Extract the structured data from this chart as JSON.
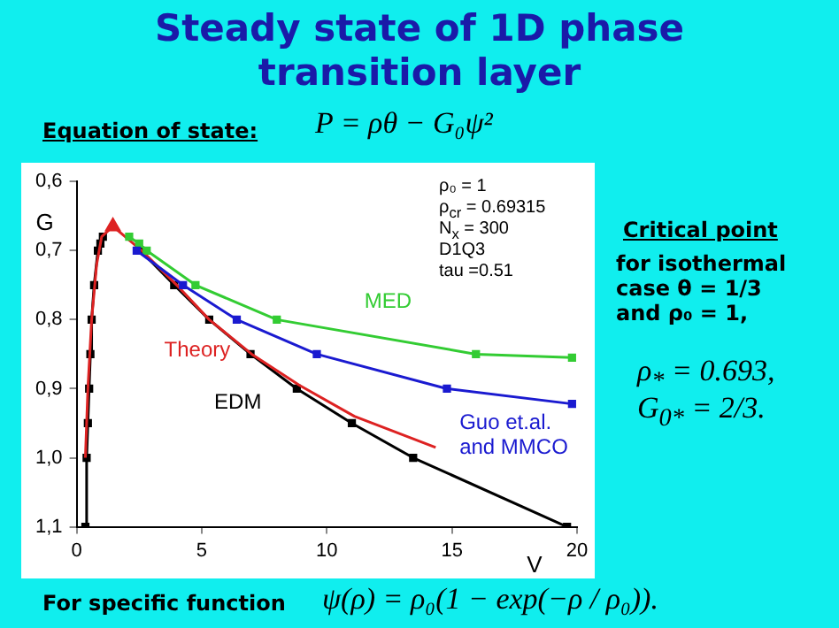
{
  "chart_data": {
    "type": "line",
    "title": "Steady state of 1D phase transition layer",
    "xlabel": "V",
    "ylabel": "G",
    "xlim": [
      0,
      20
    ],
    "xticks": [
      0,
      5,
      10,
      15,
      20
    ],
    "ylim": [
      1.1,
      0.6
    ],
    "yticks": [
      {
        "value": 0.6,
        "label": "0,6"
      },
      {
        "value": 0.7,
        "label": "0,7"
      },
      {
        "value": 0.8,
        "label": "0,8"
      },
      {
        "value": 0.9,
        "label": "0,9"
      },
      {
        "value": 1.0,
        "label": "1,0"
      },
      {
        "value": 1.1,
        "label": "1,1"
      }
    ],
    "grid": false,
    "legend": false,
    "marker": "square",
    "series": [
      {
        "name": "EDM",
        "color": "#000000",
        "x": [
          0.35,
          0.4,
          0.45,
          0.5,
          0.55,
          0.6,
          0.7,
          0.85,
          0.95,
          1.05,
          1.5,
          2.55,
          3.9,
          5.3,
          6.95,
          8.8,
          11.0,
          13.45,
          19.6
        ],
        "values": [
          1.1,
          1.0,
          0.95,
          0.9,
          0.85,
          0.8,
          0.75,
          0.7,
          0.69,
          0.68,
          null,
          0.7,
          0.75,
          0.8,
          0.85,
          0.9,
          0.95,
          1.0,
          1.1
        ]
      },
      {
        "name": "Theory",
        "color": "#dd2222",
        "marker": "none",
        "x": [
          0.35,
          0.45,
          0.6,
          0.8,
          1.0,
          1.45,
          2.6,
          4.0,
          5.3,
          7.0,
          8.9,
          11.1,
          14.35
        ],
        "values": [
          1.0,
          0.9,
          0.8,
          0.72,
          0.68,
          0.665,
          0.7,
          0.75,
          0.8,
          0.85,
          0.895,
          0.94,
          0.985
        ]
      },
      {
        "type": "scatter",
        "color": "#dd2222",
        "marker": "triangle",
        "x": [
          1.45
        ],
        "values": [
          0.665
        ]
      },
      {
        "name": "MED",
        "color": "#33cc33",
        "x": [
          2.1,
          2.5,
          2.8,
          4.75,
          8.0,
          15.96,
          19.8
        ],
        "values": [
          0.68,
          0.69,
          0.7,
          0.75,
          0.8,
          0.85,
          0.855
        ]
      },
      {
        "name": "Guo et.al. and MMCO",
        "color": "#1a1ad0",
        "x": [
          2.4,
          4.25,
          6.4,
          9.6,
          14.8,
          19.8
        ],
        "values": [
          0.7,
          0.75,
          0.8,
          0.85,
          0.9,
          0.922
        ]
      }
    ],
    "annotations": [
      "ρ₀ = 1",
      "ρ$_{cr}$ = 0.69315",
      "N$_{x}$ = 300",
      "D1Q3",
      "tau =0.51",
      "Equation of state:",
      "P = ρθ − G₀ψ²",
      "Critical point",
      "for isothermal",
      "case  θ = 1/3",
      "and   ρ₀ = 1,",
      "ρ$_{*}$ = 0.693,",
      "G$_{0*}$ = 2/3.",
      "For specific function",
      "ψ(ρ) = ρ₀(1 − exp(−ρ / ρ₀))."
    ]
  }
}
